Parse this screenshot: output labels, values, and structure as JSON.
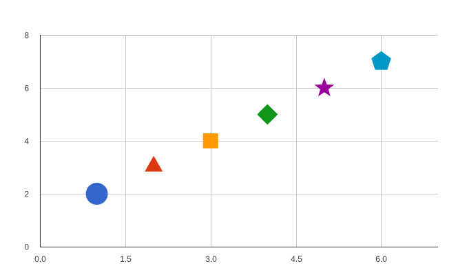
{
  "chart_data": {
    "type": "scatter",
    "title": "",
    "xlabel": "",
    "ylabel": "",
    "xlim": [
      0,
      7
    ],
    "ylim": [
      0,
      8
    ],
    "grid": true,
    "legend": "none",
    "x_ticks": [
      "0.0",
      "1.5",
      "3.0",
      "4.5",
      "6.0"
    ],
    "y_ticks": [
      "0",
      "2",
      "4",
      "6",
      "8"
    ],
    "points": [
      {
        "x": 1,
        "y": 2,
        "shape": "circle",
        "color": "#3366cc"
      },
      {
        "x": 2,
        "y": 3.1,
        "shape": "triangle",
        "color": "#dc3912"
      },
      {
        "x": 3,
        "y": 4,
        "shape": "square",
        "color": "#ff9900"
      },
      {
        "x": 4,
        "y": 5,
        "shape": "diamond",
        "color": "#109618"
      },
      {
        "x": 5,
        "y": 6,
        "shape": "star",
        "color": "#990099"
      },
      {
        "x": 6,
        "y": 7,
        "shape": "pentagon",
        "color": "#0099c6"
      }
    ]
  }
}
